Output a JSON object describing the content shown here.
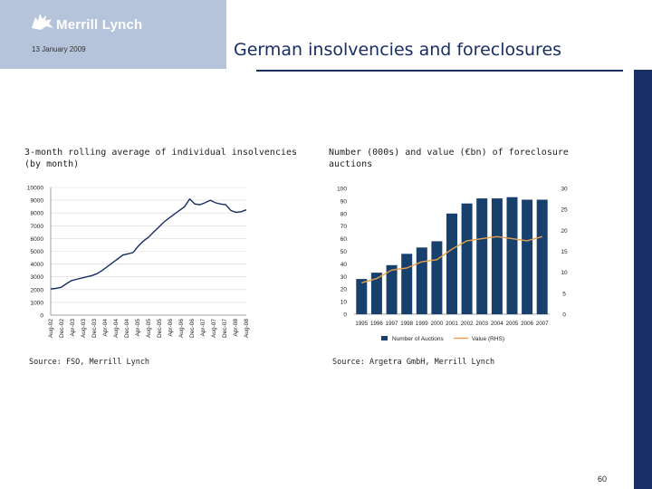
{
  "header": {
    "logo_text": "Merrill Lynch",
    "date": "13 January 2009",
    "title": "German insolvencies and foreclosures"
  },
  "charts": {
    "left": {
      "title": "3-month rolling average of individual insolvencies\n(by month)",
      "source": "Source: FSO, Merrill Lynch"
    },
    "right": {
      "title": "Number (000s) and value (€bn) of foreclosure\nauctions",
      "source": "Source: Argetra GmbH, Merrill Lynch"
    }
  },
  "colors": {
    "navy": "#1a2e66",
    "bar": "#17406d",
    "line": "#e8a04a",
    "header_bg": "#b5c4da"
  },
  "footer": {
    "page": "60"
  },
  "chart_data": [
    {
      "type": "line",
      "title": "3-month rolling average of individual insolvencies (by month)",
      "ylim": [
        0,
        10000
      ],
      "y_ticks": [
        "0",
        "1000",
        "2000",
        "3000",
        "4000",
        "5000",
        "6000",
        "7000",
        "8000",
        "9000",
        "10000"
      ],
      "x_ticks": [
        "Aug-02",
        "Dec-02",
        "Apr-03",
        "Aug-03",
        "Dec-03",
        "Apr-04",
        "Aug-04",
        "Dec-04",
        "Apr-05",
        "Aug-05",
        "Dec-05",
        "Apr-06",
        "Aug-06",
        "Dec-06",
        "Apr-07",
        "Aug-07",
        "Dec-07",
        "Apr-08",
        "Aug-08"
      ],
      "series": [
        {
          "values": [
            2050,
            2100,
            2180,
            2450,
            2700,
            2800,
            2900,
            3000,
            3100,
            3250,
            3500,
            3800,
            4100,
            4400,
            4700,
            4800,
            4900,
            5400,
            5800,
            6100,
            6500,
            6900,
            7300,
            7600,
            7900,
            8200,
            8500,
            9100,
            8700,
            8650,
            8800,
            9000,
            8800,
            8700,
            8650,
            8200,
            8050,
            8100,
            8250
          ]
        }
      ],
      "grid": true
    },
    {
      "type": "bar",
      "title": "Number (000s) and value (€bn) of foreclosure auctions",
      "categories": [
        "1995",
        "1996",
        "1997",
        "1998",
        "1999",
        "2000",
        "2001",
        "2002",
        "2003",
        "2004",
        "2005",
        "2006",
        "2007"
      ],
      "ylim": [
        0,
        100
      ],
      "y2lim": [
        0,
        30
      ],
      "y_ticks": [
        "0",
        "10",
        "20",
        "30",
        "40",
        "50",
        "60",
        "70",
        "80",
        "90",
        "100"
      ],
      "y2_ticks": [
        "0",
        "5",
        "10",
        "15",
        "20",
        "25",
        "30"
      ],
      "series": [
        {
          "name": "Number of Auctions",
          "type": "bar",
          "axis": "left",
          "values": [
            28,
            33,
            39,
            48,
            53,
            58,
            80,
            88,
            92,
            92,
            93,
            91,
            91
          ]
        },
        {
          "name": "Value (RHS)",
          "type": "line",
          "axis": "right",
          "values": [
            7.5,
            8.5,
            10.5,
            11,
            12.5,
            13,
            15.5,
            17.5,
            18,
            18.5,
            18,
            17.5,
            18.5
          ]
        }
      ],
      "legend": "bottom"
    }
  ]
}
